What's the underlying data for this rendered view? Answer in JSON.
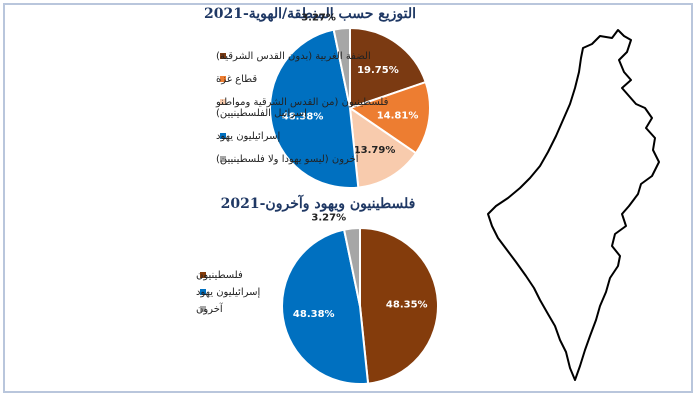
{
  "chart_data": [
    {
      "type": "pie",
      "title": "التوزيع حسب المنطقة/الهوية-2021",
      "legend_position": "left",
      "slices": [
        {
          "label": "الضفة الغربية (بدون القدس الشرقية)",
          "value": 19.75,
          "display": "19.75%",
          "color": "#7b3a12"
        },
        {
          "label": "قطاع غزة",
          "value": 14.81,
          "display": "14.81%",
          "color": "#ed7d31"
        },
        {
          "label": "فلسطينيون (من القدس الشرقية ومواطنو إسرائيل الفلسطينيين)",
          "label_lines": [
            "فلسطينيون (من القدس الشرقية ومواطنو",
            "إسرائيل الفلسطينيين)"
          ],
          "value": 13.79,
          "display": "13.79%",
          "color": "#f8cbad"
        },
        {
          "label": "إسرائيليون يهود",
          "value": 48.38,
          "display": "48.38%",
          "color": "#0070c0"
        },
        {
          "label": "آخرون (ليسو يهودا ولا فلسطينيين)",
          "value": 3.27,
          "display": "3.27%",
          "color": "#a6a6a6"
        }
      ]
    },
    {
      "type": "pie",
      "title": "فلسطينيون ويهود وآخرون-2021",
      "legend_position": "left",
      "slices": [
        {
          "label": "فلسطينيون",
          "value": 48.35,
          "display": "48.35%",
          "color": "#843c0c"
        },
        {
          "label": "إسرائيليون يهود",
          "value": 48.38,
          "display": "48.38%",
          "color": "#0070c0"
        },
        {
          "label": "آخرون",
          "value": 3.27,
          "display": "3.27%",
          "color": "#a6a6a6"
        }
      ]
    }
  ]
}
